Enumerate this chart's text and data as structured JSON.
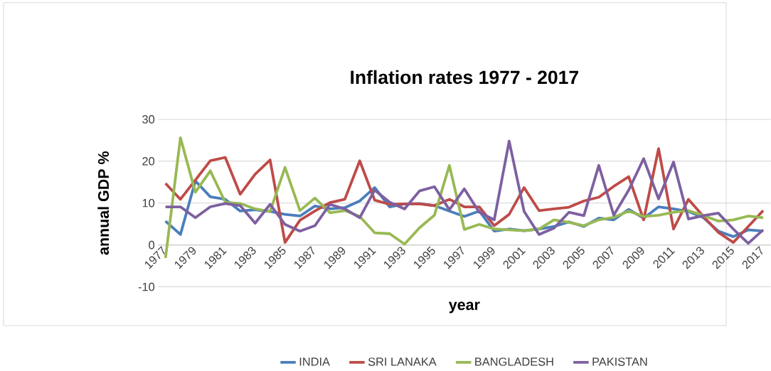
{
  "chart_data": {
    "type": "line",
    "title": "Inflation rates 1977 - 2017",
    "xlabel": "year",
    "ylabel": "annual GDP %",
    "categories": [
      "1977",
      null,
      "1979",
      null,
      "1981",
      null,
      "1983",
      null,
      "1985",
      null,
      "1987",
      null,
      "1989",
      null,
      "1991",
      null,
      "1993",
      null,
      "1995",
      null,
      "1997",
      null,
      "1999",
      null,
      "2001",
      null,
      "2003",
      null,
      "2005",
      null,
      "2007",
      null,
      "2009",
      null,
      "2011",
      null,
      "2013",
      null,
      "2015",
      null,
      "2017"
    ],
    "series": [
      {
        "name": "INDIA",
        "color": "#4a7ebb",
        "values": [
          5.7,
          2.5,
          15.3,
          11.5,
          10.9,
          8.1,
          8.4,
          8.0,
          7.3,
          6.9,
          9.3,
          8.6,
          8.9,
          10.5,
          13.7,
          9.1,
          9.8,
          9.9,
          9.4,
          8.1,
          6.8,
          8.1,
          3.3,
          3.8,
          3.4,
          3.8,
          4.4,
          5.5,
          4.4,
          6.4,
          6.0,
          8.5,
          6.4,
          9.1,
          8.6,
          8.0,
          6.5,
          3.3,
          2.0,
          3.6,
          3.3
        ]
      },
      {
        "name": "SRI LANAKA",
        "color": "#be4b48",
        "values": [
          14.7,
          10.9,
          15.5,
          20.1,
          20.9,
          12.1,
          16.9,
          20.3,
          0.6,
          5.9,
          8.1,
          10.1,
          10.9,
          20.1,
          10.7,
          9.7,
          9.8,
          9.8,
          9.4,
          10.9,
          9.1,
          9.1,
          4.6,
          7.3,
          13.7,
          8.2,
          8.6,
          9.0,
          10.5,
          11.4,
          14.0,
          16.3,
          6.0,
          23.0,
          3.8,
          10.9,
          6.8,
          3.0,
          0.6,
          4.4,
          8.2
        ]
      },
      {
        "name": "BANGLADESH",
        "color": "#98b954",
        "values": [
          -3.1,
          25.6,
          12.6,
          17.7,
          10.2,
          9.9,
          8.6,
          8.0,
          18.5,
          8.2,
          11.2,
          7.7,
          8.2,
          6.8,
          2.9,
          2.7,
          0.2,
          4.1,
          7.1,
          19.0,
          3.7,
          4.9,
          3.8,
          3.6,
          3.4,
          3.8,
          6.0,
          5.4,
          4.6,
          6.0,
          6.6,
          8.1,
          6.8,
          7.1,
          7.8,
          8.2,
          7.0,
          5.7,
          6.0,
          6.9,
          6.5
        ]
      },
      {
        "name": "PAKISTAN",
        "color": "#7d60a0",
        "values": [
          9.1,
          9.1,
          6.5,
          9.1,
          9.9,
          9.4,
          5.2,
          9.7,
          4.9,
          3.3,
          4.6,
          9.7,
          8.6,
          6.5,
          13.1,
          10.2,
          8.6,
          12.9,
          13.9,
          8.4,
          13.4,
          7.8,
          6.0,
          24.8,
          8.0,
          2.5,
          4.0,
          7.8,
          7.0,
          19.0,
          7.1,
          13.1,
          20.6,
          11.0,
          19.8,
          6.2,
          7.0,
          7.6,
          3.8,
          0.4,
          3.6
        ]
      }
    ],
    "ylim": [
      -10,
      30
    ],
    "yticks": [
      -10,
      0,
      10,
      20,
      30
    ],
    "grid": "y",
    "legend": "bottom",
    "line_style": "solid"
  }
}
